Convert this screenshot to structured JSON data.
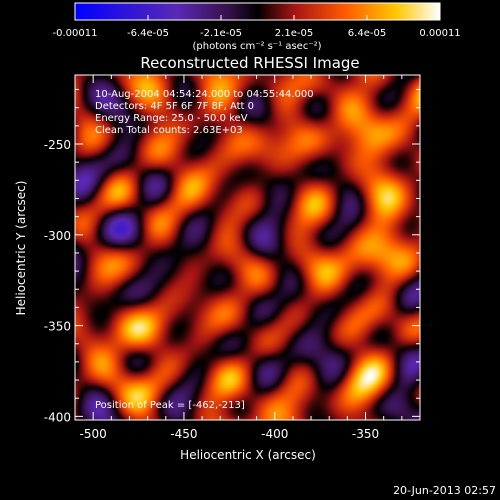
{
  "chart_data": {
    "type": "heatmap",
    "title": "Reconstructed RHESSI Image",
    "xlabel": "Heliocentric X (arcsec)",
    "ylabel": "Heliocentric Y (arcsec)",
    "xlim": [
      -510,
      -320
    ],
    "ylim": [
      -402,
      -212
    ],
    "x_ticks": [
      -500,
      -450,
      -400,
      -350
    ],
    "y_ticks": [
      -250,
      -300,
      -350,
      -400
    ],
    "x_tick_labels": [
      "-500",
      "-450",
      "-400",
      "-350"
    ],
    "y_tick_labels": [
      "-250",
      "-300",
      "-350",
      "-400"
    ],
    "colorbar": {
      "range": [
        -0.00011,
        0.00011
      ],
      "tick_labels": [
        "-0.00011",
        "-6.4e-05",
        "-2.1e-05",
        "2.1e-05",
        "6.4e-05",
        "0.00011"
      ],
      "units_label": "(photons cm⁻² s⁻¹ asec⁻²)",
      "colormap": [
        "#0000ff",
        "#5a28b4",
        "#37114a",
        "#000000",
        "#a51414",
        "#ff5a00",
        "#ffc800",
        "#ffffff"
      ]
    },
    "annotations": [
      "10-Aug-2004 04:54:24.000 to 04:55:44.000",
      "Detectors: 4F 5F 6F 7F 8F, Att 0",
      "Energy Range: 25.0 - 50.0 keV",
      "Clean     Total counts: 2.63E+03"
    ],
    "peak_label": "Position of Peak = [-462,-213]",
    "peak": [
      -462,
      -213
    ]
  },
  "footer": {
    "timestamp": "20-Jun-2013 02:57"
  }
}
